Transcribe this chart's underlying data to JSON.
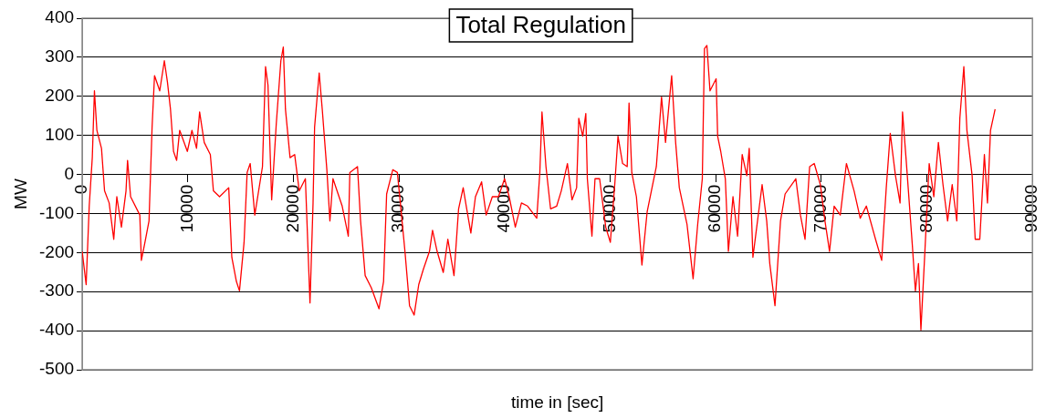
{
  "chart_data": {
    "type": "line",
    "title": "Total Regulation",
    "xlabel": "time in [sec]",
    "ylabel": "MW",
    "xlim": [
      0,
      90000
    ],
    "xticks": [
      0,
      10000,
      20000,
      30000,
      40000,
      50000,
      60000,
      70000,
      80000,
      90000
    ],
    "ylim": [
      -500,
      400
    ],
    "yticks": [
      -500,
      -400,
      -300,
      -200,
      -100,
      0,
      100,
      200,
      300,
      400
    ],
    "grid": "y",
    "legend": false,
    "marker": "none",
    "line_style": "solid",
    "series": [
      {
        "color": "#ff0000",
        "x": [
          0,
          377,
          668,
          958,
          1162,
          1394,
          1830,
          2120,
          2556,
          2991,
          3282,
          3717,
          4153,
          4298,
          4588,
          5460,
          5605,
          5895,
          6331,
          6621,
          6853,
          7347,
          7783,
          8073,
          8364,
          8654,
          8945,
          9235,
          9961,
          10397,
          10833,
          11123,
          11559,
          12139,
          12430,
          13010,
          13881,
          14172,
          14607,
          14898,
          15333,
          15624,
          15914,
          16350,
          17076,
          17366,
          17598,
          17947,
          18382,
          18818,
          19050,
          19253,
          19689,
          20125,
          20560,
          21141,
          21577,
          21867,
          22012,
          22448,
          22738,
          23174,
          23464,
          23754,
          24625,
          25206,
          25351,
          26077,
          26367,
          26803,
          27384,
          28110,
          28545,
          28836,
          29417,
          29852,
          30135,
          30570,
          31005,
          31441,
          31876,
          32312,
          32892,
          33183,
          33618,
          34199,
          34634,
          35215,
          35651,
          36086,
          36376,
          36812,
          37247,
          37828,
          38263,
          38844,
          39425,
          40006,
          40441,
          41022,
          41603,
          42184,
          43055,
          43345,
          43548,
          43926,
          44361,
          44942,
          45377,
          45958,
          46393,
          46829,
          47032,
          47409,
          47700,
          47845,
          48280,
          48570,
          49006,
          49587,
          50022,
          50458,
          50748,
          51184,
          51619,
          51794,
          52055,
          52491,
          53014,
          53507,
          54378,
          54872,
          55249,
          55830,
          56207,
          56555,
          57281,
          57862,
          58298,
          58733,
          58936,
          59169,
          59460,
          60041,
          60186,
          60477,
          60912,
          61203,
          61638,
          62074,
          62509,
          62945,
          63177,
          63525,
          63961,
          64396,
          64832,
          65122,
          65616,
          66138,
          66574,
          67590,
          68026,
          68461,
          68897,
          69332,
          69913,
          70348,
          70784,
          71219,
          71800,
          72381,
          73107,
          73688,
          74268,
          75139,
          75720,
          76155,
          76533,
          77027,
          77462,
          77695,
          78043,
          78624,
          78914,
          79205,
          79437,
          79786,
          80221,
          80656,
          81092,
          81527,
          81963,
          82399,
          82834,
          83124,
          83502,
          83793,
          84286,
          84577,
          85013,
          85448,
          85739,
          86029,
          86465
        ],
        "values": [
          -197,
          -282,
          -81,
          43,
          214,
          113,
          67,
          -42,
          -73,
          -166,
          -57,
          -135,
          -42,
          36,
          -57,
          -104,
          -220,
          -181,
          -119,
          121,
          253,
          214,
          291,
          237,
          167,
          59,
          36,
          113,
          59,
          113,
          67,
          160,
          82,
          51,
          -42,
          -57,
          -34,
          -212,
          -274,
          -298,
          -174,
          5,
          28,
          -104,
          20,
          276,
          229,
          -65,
          129,
          291,
          326,
          167,
          43,
          51,
          -42,
          -11,
          -329,
          -73,
          121,
          260,
          167,
          12,
          -119,
          -11,
          -81,
          -158,
          5,
          20,
          -119,
          -259,
          -290,
          -344,
          -274,
          -50,
          12,
          5,
          -73,
          -197,
          -336,
          -360,
          -282,
          -243,
          -197,
          -143,
          -197,
          -251,
          -166,
          -259,
          -88,
          -34,
          -81,
          -150,
          -57,
          -19,
          -104,
          -57,
          -57,
          -11,
          -57,
          -135,
          -73,
          -81,
          -112,
          5,
          160,
          20,
          -88,
          -81,
          -42,
          28,
          -65,
          -34,
          144,
          98,
          156,
          -11,
          -158,
          -11,
          -11,
          -135,
          -174,
          -19,
          98,
          28,
          20,
          183,
          5,
          -57,
          -232,
          -96,
          20,
          198,
          82,
          253,
          82,
          -34,
          -127,
          -267,
          -127,
          -11,
          322,
          330,
          214,
          245,
          98,
          59,
          -11,
          -197,
          -57,
          -158,
          51,
          -3,
          67,
          -212,
          -119,
          -26,
          -119,
          -228,
          -336,
          -119,
          -50,
          -11,
          -104,
          -166,
          20,
          28,
          -26,
          -119,
          -197,
          -81,
          -104,
          28,
          -42,
          -112,
          -81,
          -166,
          -220,
          -34,
          105,
          -3,
          -73,
          160,
          36,
          -181,
          -298,
          -228,
          -398,
          -212,
          28,
          -57,
          82,
          -26,
          -119,
          -26,
          -119,
          144,
          276,
          113,
          -3,
          -166,
          -166,
          51,
          -73,
          113,
          167
        ]
      }
    ]
  }
}
